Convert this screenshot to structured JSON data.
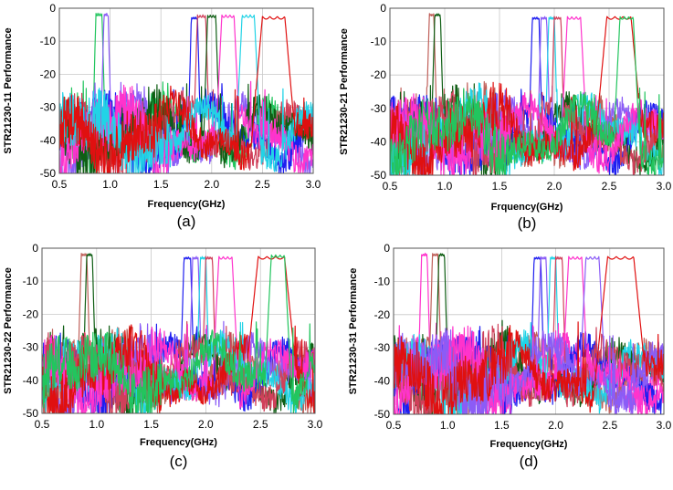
{
  "figure": {
    "panels": [
      {
        "id": "a",
        "panel_label": "(a)",
        "ylabel": "STR21230-11 Performance",
        "xlabel": "Frequency(GHz)",
        "xlim": [
          0.5,
          3.0
        ],
        "ylim": [
          -50,
          0
        ],
        "xticks": [
          "0.5",
          "1.0",
          "1.5",
          "2.0",
          "2.5",
          "3.0"
        ],
        "yticks": [
          "0",
          "-10",
          "-20",
          "-30",
          "-40",
          "-50"
        ]
      },
      {
        "id": "b",
        "panel_label": "(b)",
        "ylabel": "STR21230-21 Performance",
        "xlabel": "Frquency(GHz)",
        "xlim": [
          0.5,
          3.0
        ],
        "ylim": [
          -50,
          0
        ],
        "xticks": [
          "0.5",
          "1.0",
          "1.5",
          "2.0",
          "2.5",
          "3.0"
        ],
        "yticks": [
          "0",
          "-10",
          "-20",
          "-30",
          "-40",
          "-50"
        ]
      },
      {
        "id": "c",
        "panel_label": "(c)",
        "ylabel": "STR21230-22 Performance",
        "xlabel": "Frequency(GHz)",
        "xlim": [
          0.5,
          3.0
        ],
        "ylim": [
          -50,
          0
        ],
        "xticks": [
          "0.5",
          "1.0",
          "1.5",
          "2.0",
          "2.5",
          "3.0"
        ],
        "yticks": [
          "0",
          "-10",
          "-20",
          "-30",
          "-40",
          "-50"
        ]
      },
      {
        "id": "d",
        "panel_label": "(d)",
        "ylabel": "STR21230-31 Performance",
        "xlabel": "Frequency(GHz)",
        "xlim": [
          0.5,
          3.0
        ],
        "ylim": [
          -50,
          0
        ],
        "xticks": [
          "0.5",
          "1.0",
          "1.5",
          "2.0",
          "2.5",
          "3.0"
        ],
        "yticks": [
          "0",
          "-10",
          "-20",
          "-30",
          "-40",
          "-50"
        ]
      }
    ]
  },
  "chart_data": [
    {
      "type": "line",
      "panel": "(a)",
      "title": "",
      "xlabel": "Frequency(GHz)",
      "ylabel": "STR21230-11 Performance",
      "xlim": [
        0.5,
        3.0
      ],
      "ylim": [
        -50,
        0
      ],
      "grid": true,
      "legend": "none",
      "series": [
        {
          "color": "#22c55e",
          "passband": [
            0.86,
            0.92
          ],
          "pass_level": -1.5
        },
        {
          "color": "#8b5cf6",
          "passband": [
            0.94,
            0.98
          ],
          "pass_level": -1.5
        },
        {
          "color": "#1e1ef0",
          "passband": [
            1.8,
            1.86
          ],
          "pass_level": -2.5
        },
        {
          "color": "#d0405a",
          "passband": [
            1.86,
            1.94
          ],
          "pass_level": -2.0
        },
        {
          "color": "#0f5e14",
          "passband": [
            1.96,
            2.04
          ],
          "pass_level": -2.0
        },
        {
          "color": "#ff33cc",
          "passband": [
            2.1,
            2.22
          ],
          "pass_level": -2.0
        },
        {
          "color": "#22d3e6",
          "passband": [
            2.3,
            2.42
          ],
          "pass_level": -2.0
        },
        {
          "color": "#e01010",
          "passband": [
            2.5,
            2.72
          ],
          "pass_level": -2.5
        }
      ]
    },
    {
      "type": "line",
      "panel": "(b)",
      "title": "",
      "xlabel": "Frquency(GHz)",
      "ylabel": "STR21230-21 Performance",
      "xlim": [
        0.5,
        3.0
      ],
      "ylim": [
        -50,
        0
      ],
      "grid": true,
      "legend": "none",
      "series": [
        {
          "color": "#c0605a",
          "passband": [
            0.86,
            0.9
          ],
          "pass_level": -1.5
        },
        {
          "color": "#0f5e14",
          "passband": [
            0.91,
            0.96
          ],
          "pass_level": -1.5
        },
        {
          "color": "#1e1ef0",
          "passband": [
            1.8,
            1.86
          ],
          "pass_level": -2.5
        },
        {
          "color": "#8b5cf6",
          "passband": [
            1.88,
            1.93
          ],
          "pass_level": -2.5
        },
        {
          "color": "#22d3e6",
          "passband": [
            1.95,
            2.0
          ],
          "pass_level": -2.5
        },
        {
          "color": "#d0405a",
          "passband": [
            2.0,
            2.06
          ],
          "pass_level": -2.5
        },
        {
          "color": "#ff33cc",
          "passband": [
            2.12,
            2.24
          ],
          "pass_level": -2.5
        },
        {
          "color": "#e01010",
          "passband": [
            2.48,
            2.7
          ],
          "pass_level": -2.5
        },
        {
          "color": "#22c55e",
          "passband": [
            2.6,
            2.72
          ],
          "pass_level": -2.5
        }
      ]
    },
    {
      "type": "line",
      "panel": "(c)",
      "title": "",
      "xlabel": "Frequency(GHz)",
      "ylabel": "STR21230-22 Performance",
      "xlim": [
        0.5,
        3.0
      ],
      "ylim": [
        -50,
        0
      ],
      "grid": true,
      "legend": "none",
      "series": [
        {
          "color": "#c0605a",
          "passband": [
            0.86,
            0.91
          ],
          "pass_level": -1.5
        },
        {
          "color": "#0f5e14",
          "passband": [
            0.91,
            0.96
          ],
          "pass_level": -1.5
        },
        {
          "color": "#1e1ef0",
          "passband": [
            1.8,
            1.86
          ],
          "pass_level": -2.5
        },
        {
          "color": "#8b5cf6",
          "passband": [
            1.88,
            1.93
          ],
          "pass_level": -2.5
        },
        {
          "color": "#22d3e6",
          "passband": [
            1.95,
            2.0
          ],
          "pass_level": -2.5
        },
        {
          "color": "#d0405a",
          "passband": [
            2.0,
            2.06
          ],
          "pass_level": -2.5
        },
        {
          "color": "#ff33cc",
          "passband": [
            2.12,
            2.24
          ],
          "pass_level": -2.5
        },
        {
          "color": "#e01010",
          "passband": [
            2.48,
            2.72
          ],
          "pass_level": -2.5
        },
        {
          "color": "#22c55e",
          "passband": [
            2.6,
            2.72
          ],
          "pass_level": -2.0
        }
      ]
    },
    {
      "type": "line",
      "panel": "(d)",
      "title": "",
      "xlabel": "Frequency(GHz)",
      "ylabel": "STR21230-31 Performance",
      "xlim": [
        0.5,
        3.0
      ],
      "ylim": [
        -50,
        0
      ],
      "grid": true,
      "legend": "none",
      "series": [
        {
          "color": "#ff33cc",
          "passband": [
            0.76,
            0.81
          ],
          "pass_level": -1.5
        },
        {
          "color": "#c0605a",
          "passband": [
            0.86,
            0.91
          ],
          "pass_level": -1.5
        },
        {
          "color": "#0f5e14",
          "passband": [
            0.92,
            0.97
          ],
          "pass_level": -1.5
        },
        {
          "color": "#1e1ef0",
          "passband": [
            1.8,
            1.86
          ],
          "pass_level": -2.5
        },
        {
          "color": "#8b5cf6",
          "passband": [
            1.86,
            1.91
          ],
          "pass_level": -2.5
        },
        {
          "color": "#22d3e6",
          "passband": [
            1.95,
            2.0
          ],
          "pass_level": -2.5
        },
        {
          "color": "#d0405a",
          "passband": [
            2.0,
            2.06
          ],
          "pass_level": -2.5
        },
        {
          "color": "#ff33cc",
          "passband": [
            2.12,
            2.24
          ],
          "pass_level": -2.5
        },
        {
          "color": "#8b5cf6",
          "passband": [
            2.28,
            2.4
          ],
          "pass_level": -2.5
        },
        {
          "color": "#e01010",
          "passband": [
            2.48,
            2.72
          ],
          "pass_level": -2.5
        }
      ]
    }
  ]
}
